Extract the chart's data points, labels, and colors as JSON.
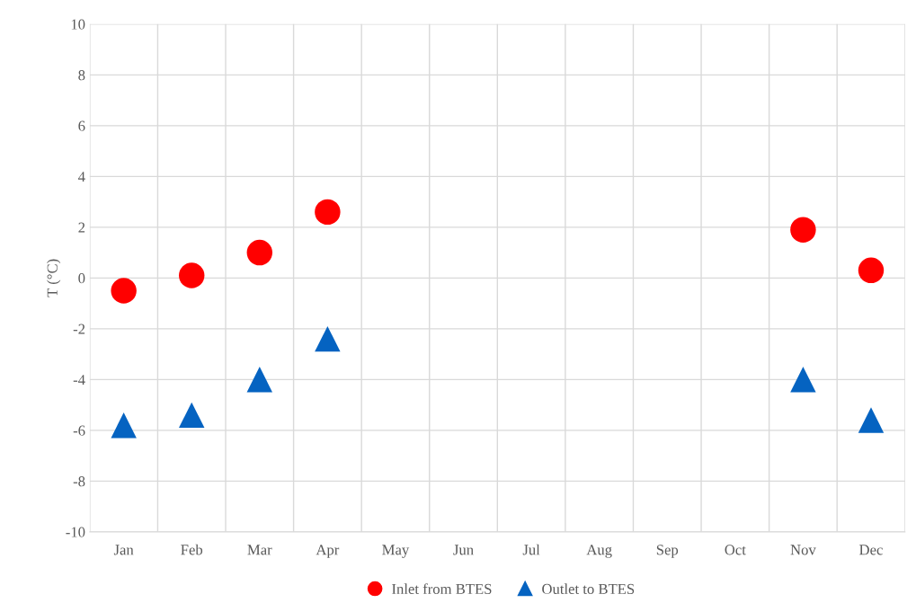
{
  "chart_data": {
    "type": "scatter",
    "ylabel": "T (°C)",
    "categories": [
      "Jan",
      "Feb",
      "Mar",
      "Apr",
      "May",
      "Jun",
      "Jul",
      "Aug",
      "Sep",
      "Oct",
      "Nov",
      "Dec"
    ],
    "series": [
      {
        "name": "Inlet from BTES",
        "color": "#ff0000",
        "marker": "circle",
        "values": [
          -0.5,
          0.1,
          1.0,
          2.6,
          null,
          null,
          null,
          null,
          null,
          null,
          1.9,
          0.3
        ]
      },
      {
        "name": "Outlet to BTES",
        "color": "#0563c1",
        "marker": "triangle",
        "values": [
          -5.8,
          -5.4,
          -4.0,
          -2.4,
          null,
          null,
          null,
          null,
          null,
          null,
          -4.0,
          -5.6
        ]
      }
    ],
    "ylim": [
      -10,
      10
    ],
    "yticks": [
      -10,
      -8,
      -6,
      -4,
      -2,
      0,
      2,
      4,
      6,
      8,
      10
    ],
    "grid": true,
    "legend": "bottom"
  }
}
